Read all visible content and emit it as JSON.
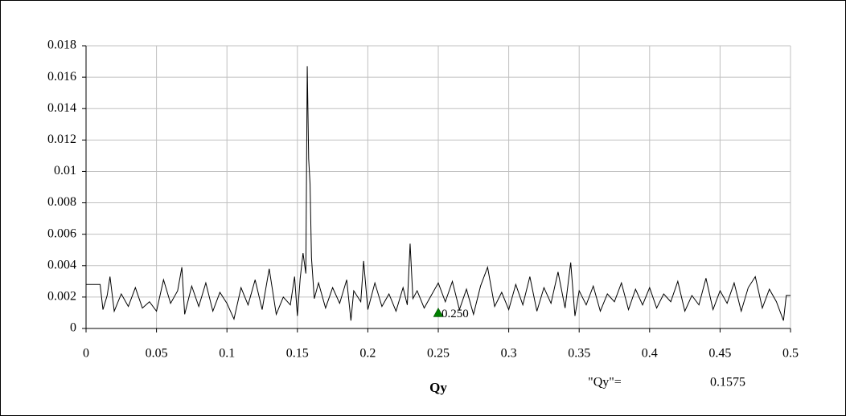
{
  "chart_data": {
    "type": "line",
    "x_label": "Qy",
    "readout_label": "\"Qy\"=",
    "readout_value": 0.1575,
    "color": "#000000",
    "grid": true,
    "xlim": [
      0,
      0.5
    ],
    "ylim": [
      0,
      0.018
    ],
    "xticks": [
      0,
      0.05,
      0.1,
      0.15,
      0.2,
      0.25,
      0.3,
      0.35,
      0.4,
      0.45,
      0.5
    ],
    "yticks": [
      0,
      0.002,
      0.004,
      0.006,
      0.008,
      0.01,
      0.012,
      0.014,
      0.016,
      0.018
    ],
    "marker": {
      "x": {
        "value": 0.25,
        "label": "0.250"
      },
      "y": 0.001,
      "color": "#008000"
    },
    "x": [
      0,
      0.005,
      0.01,
      0.012,
      0.015,
      0.017,
      0.02,
      0.025,
      0.03,
      0.035,
      0.04,
      0.045,
      0.05,
      0.055,
      0.06,
      0.065,
      0.068,
      0.07,
      0.075,
      0.08,
      0.085,
      0.09,
      0.095,
      0.1,
      0.105,
      0.11,
      0.115,
      0.12,
      0.125,
      0.13,
      0.135,
      0.14,
      0.145,
      0.148,
      0.15,
      0.152,
      0.154,
      0.156,
      0.157,
      0.158,
      0.159,
      0.16,
      0.162,
      0.165,
      0.17,
      0.175,
      0.18,
      0.185,
      0.188,
      0.19,
      0.195,
      0.197,
      0.2,
      0.205,
      0.21,
      0.215,
      0.22,
      0.225,
      0.228,
      0.23,
      0.232,
      0.235,
      0.24,
      0.245,
      0.25,
      0.255,
      0.26,
      0.265,
      0.27,
      0.275,
      0.28,
      0.285,
      0.29,
      0.295,
      0.3,
      0.305,
      0.31,
      0.315,
      0.32,
      0.325,
      0.33,
      0.335,
      0.34,
      0.344,
      0.347,
      0.35,
      0.355,
      0.36,
      0.365,
      0.37,
      0.375,
      0.38,
      0.385,
      0.39,
      0.395,
      0.4,
      0.405,
      0.41,
      0.415,
      0.42,
      0.425,
      0.43,
      0.435,
      0.44,
      0.445,
      0.45,
      0.455,
      0.46,
      0.465,
      0.47,
      0.475,
      0.48,
      0.485,
      0.49,
      0.495,
      0.497,
      0.5
    ],
    "values": [
      0.0028,
      0.0028,
      0.0028,
      0.0012,
      0.0021,
      0.0033,
      0.0011,
      0.0022,
      0.0014,
      0.0026,
      0.0013,
      0.0017,
      0.0011,
      0.0031,
      0.0016,
      0.0024,
      0.0039,
      0.0009,
      0.0027,
      0.0014,
      0.0029,
      0.0011,
      0.0023,
      0.0016,
      0.0006,
      0.0026,
      0.0015,
      0.0031,
      0.0012,
      0.0038,
      0.0009,
      0.002,
      0.0015,
      0.0033,
      0.0008,
      0.0032,
      0.0048,
      0.0035,
      0.0167,
      0.0108,
      0.0092,
      0.0045,
      0.0019,
      0.0029,
      0.0013,
      0.0026,
      0.0016,
      0.0031,
      0.0005,
      0.0024,
      0.0017,
      0.0043,
      0.0012,
      0.0029,
      0.0014,
      0.0022,
      0.0011,
      0.0026,
      0.0015,
      0.0054,
      0.0019,
      0.0024,
      0.0013,
      0.0021,
      0.0029,
      0.0017,
      0.003,
      0.0012,
      0.0025,
      0.0009,
      0.0027,
      0.0039,
      0.0014,
      0.0023,
      0.0012,
      0.0028,
      0.0015,
      0.0033,
      0.0011,
      0.0026,
      0.0016,
      0.0036,
      0.0013,
      0.0042,
      0.0008,
      0.0024,
      0.0015,
      0.0027,
      0.0011,
      0.0022,
      0.0017,
      0.0029,
      0.0012,
      0.0025,
      0.0015,
      0.0026,
      0.0013,
      0.0022,
      0.0017,
      0.003,
      0.0011,
      0.0021,
      0.0015,
      0.0032,
      0.0012,
      0.0024,
      0.0016,
      0.0029,
      0.0011,
      0.0026,
      0.0033,
      0.0013,
      0.0025,
      0.0017,
      0.0005,
      0.0021,
      0.0021
    ]
  }
}
